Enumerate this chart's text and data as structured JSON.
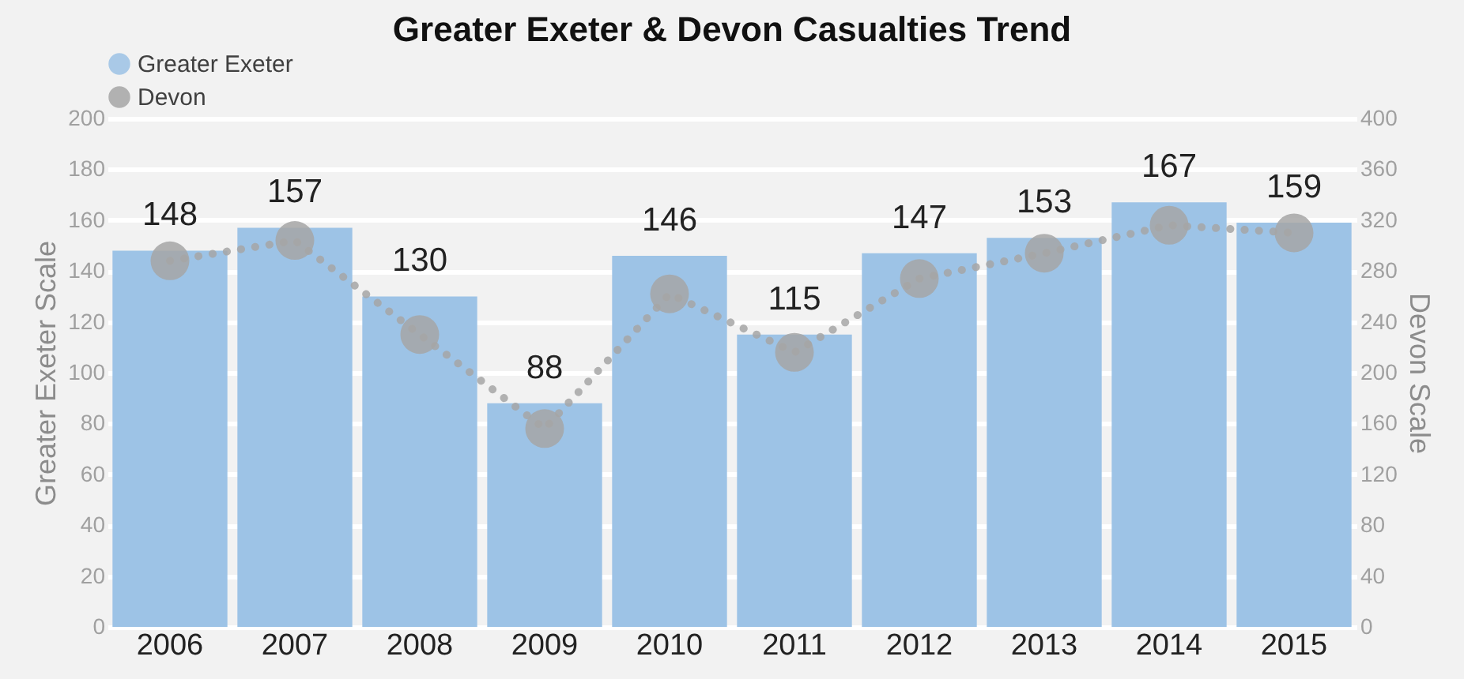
{
  "chart_data": {
    "type": "bar",
    "title": "Greater Exeter & Devon Casualties Trend",
    "categories": [
      "2006",
      "2007",
      "2008",
      "2009",
      "2010",
      "2011",
      "2012",
      "2013",
      "2014",
      "2015"
    ],
    "series": [
      {
        "name": "Greater Exeter",
        "color": "#9dc3e6",
        "values": [
          148,
          157,
          130,
          88,
          146,
          115,
          147,
          153,
          167,
          159
        ],
        "value_labels": [
          "148",
          "157",
          "130",
          "88",
          "146",
          "115",
          "147",
          "153",
          "167",
          "159"
        ]
      },
      {
        "name": "Devon",
        "type": "line",
        "axis": "y2",
        "color": "#a6a6a6",
        "values": [
          288,
          304,
          230,
          156,
          262,
          216,
          274,
          294,
          316,
          310
        ],
        "marker": "circle",
        "line_style": "dotted"
      }
    ],
    "ylabel": "Greater Exeter Scale",
    "y2label": "Devon Scale",
    "ylim": [
      0,
      200
    ],
    "yticks": [
      0,
      20,
      40,
      60,
      80,
      100,
      120,
      140,
      160,
      180,
      200
    ],
    "y2lim": [
      0,
      400
    ],
    "y2ticks": [
      0,
      40,
      80,
      120,
      160,
      200,
      240,
      280,
      320,
      360,
      400
    ],
    "grid": "y",
    "legend": "top"
  }
}
